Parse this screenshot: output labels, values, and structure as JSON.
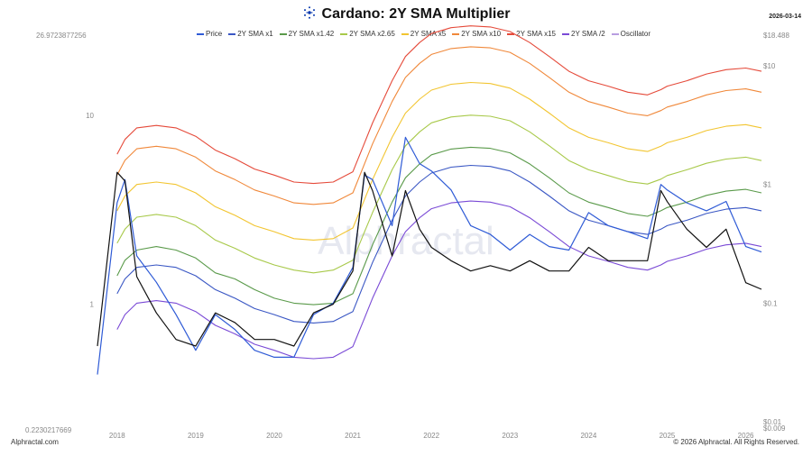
{
  "title": "Cardano: 2Y SMA Multiplier",
  "date": "2026-03-14",
  "footer": {
    "left": "Alphractal.com",
    "right": "© 2026 Alphractal. All Rights Reserved."
  },
  "watermark": "Alphractal",
  "colors": {
    "price": "#2f5bd6",
    "oscillator": "#111111",
    "sma1": "#3a57c4",
    "sma142": "#5a9a4a",
    "sma265": "#a8c94a",
    "sma5": "#f2c531",
    "sma10": "#f0883a",
    "sma15": "#e54a3a",
    "sma_half": "#7a4ad6",
    "legend_osc": "#b89ee0"
  },
  "chart_data": {
    "type": "line",
    "title": "Cardano: 2Y SMA Multiplier",
    "x": [
      2017.75,
      2018.0,
      2018.1,
      2018.25,
      2018.5,
      2018.75,
      2019.0,
      2019.25,
      2019.5,
      2019.75,
      2020.0,
      2020.25,
      2020.5,
      2020.75,
      2021.0,
      2021.15,
      2021.25,
      2021.5,
      2021.67,
      2021.85,
      2022.0,
      2022.25,
      2022.5,
      2022.75,
      2023.0,
      2023.25,
      2023.5,
      2023.75,
      2024.0,
      2024.25,
      2024.5,
      2024.75,
      2024.92,
      2025.0,
      2025.25,
      2025.5,
      2025.75,
      2026.0,
      2026.2
    ],
    "series": [
      {
        "name": "Price",
        "axis": "right",
        "values": [
          0.025,
          0.7,
          1.1,
          0.25,
          0.15,
          0.08,
          0.04,
          0.08,
          0.06,
          0.04,
          0.035,
          0.035,
          0.08,
          0.1,
          0.2,
          1.2,
          1.1,
          0.45,
          2.5,
          1.5,
          1.3,
          0.9,
          0.45,
          0.38,
          0.28,
          0.38,
          0.3,
          0.28,
          0.58,
          0.45,
          0.4,
          0.35,
          1.0,
          0.9,
          0.7,
          0.6,
          0.72,
          0.3,
          0.27
        ]
      },
      {
        "name": "2Y SMA x1",
        "axis": "right",
        "values": [
          null,
          0.12,
          0.16,
          0.2,
          0.21,
          0.2,
          0.17,
          0.13,
          0.11,
          0.09,
          0.08,
          0.07,
          0.068,
          0.07,
          0.085,
          0.15,
          0.22,
          0.5,
          0.8,
          1.05,
          1.25,
          1.4,
          1.45,
          1.42,
          1.3,
          1.05,
          0.8,
          0.6,
          0.5,
          0.45,
          0.4,
          0.38,
          0.42,
          0.45,
          0.5,
          0.57,
          0.62,
          0.64,
          0.6
        ]
      },
      {
        "name": "2Y SMA x1.42",
        "axis": "right",
        "values": [
          null,
          0.17,
          0.23,
          0.28,
          0.3,
          0.28,
          0.24,
          0.18,
          0.16,
          0.13,
          0.11,
          0.1,
          0.097,
          0.1,
          0.12,
          0.21,
          0.31,
          0.71,
          1.14,
          1.49,
          1.78,
          1.99,
          2.06,
          2.02,
          1.85,
          1.49,
          1.14,
          0.85,
          0.71,
          0.64,
          0.57,
          0.54,
          0.6,
          0.64,
          0.71,
          0.81,
          0.88,
          0.91,
          0.85
        ]
      },
      {
        "name": "2Y SMA x2.65",
        "axis": "right",
        "values": [
          null,
          0.32,
          0.42,
          0.53,
          0.56,
          0.53,
          0.45,
          0.34,
          0.29,
          0.24,
          0.21,
          0.19,
          0.18,
          0.19,
          0.23,
          0.4,
          0.58,
          1.33,
          2.12,
          2.78,
          3.31,
          3.71,
          3.84,
          3.76,
          3.45,
          2.78,
          2.12,
          1.59,
          1.33,
          1.19,
          1.06,
          1.01,
          1.11,
          1.19,
          1.33,
          1.51,
          1.64,
          1.7,
          1.59
        ]
      },
      {
        "name": "2Y SMA x5",
        "axis": "right",
        "values": [
          null,
          0.6,
          0.8,
          1.0,
          1.05,
          1.0,
          0.85,
          0.65,
          0.55,
          0.45,
          0.4,
          0.35,
          0.34,
          0.35,
          0.43,
          0.75,
          1.1,
          2.5,
          4.0,
          5.25,
          6.25,
          7.0,
          7.25,
          7.1,
          6.5,
          5.25,
          4.0,
          3.0,
          2.5,
          2.25,
          2.0,
          1.9,
          2.1,
          2.25,
          2.5,
          2.85,
          3.1,
          3.2,
          3.0
        ]
      },
      {
        "name": "2Y SMA x10",
        "axis": "right",
        "values": [
          null,
          1.2,
          1.6,
          2.0,
          2.1,
          2.0,
          1.7,
          1.3,
          1.1,
          0.9,
          0.8,
          0.7,
          0.68,
          0.7,
          0.85,
          1.5,
          2.2,
          5.0,
          8.0,
          10.5,
          12.5,
          14.0,
          14.5,
          14.2,
          13.0,
          10.5,
          8.0,
          6.0,
          5.0,
          4.5,
          4.0,
          3.8,
          4.2,
          4.5,
          5.0,
          5.7,
          6.2,
          6.4,
          6.0
        ]
      },
      {
        "name": "2Y SMA x15",
        "axis": "right",
        "values": [
          null,
          1.8,
          2.4,
          3.0,
          3.15,
          3.0,
          2.55,
          1.95,
          1.65,
          1.35,
          1.2,
          1.05,
          1.02,
          1.05,
          1.28,
          2.25,
          3.3,
          7.5,
          12.0,
          15.75,
          18.75,
          21.0,
          21.75,
          21.3,
          19.5,
          15.75,
          12.0,
          9.0,
          7.5,
          6.75,
          6.0,
          5.7,
          6.3,
          6.75,
          7.5,
          8.55,
          9.3,
          9.6,
          9.0
        ]
      },
      {
        "name": "2Y SMA /2",
        "axis": "right",
        "values": [
          null,
          0.06,
          0.08,
          0.1,
          0.105,
          0.1,
          0.085,
          0.065,
          0.055,
          0.045,
          0.04,
          0.035,
          0.034,
          0.035,
          0.043,
          0.075,
          0.11,
          0.25,
          0.4,
          0.525,
          0.625,
          0.7,
          0.725,
          0.71,
          0.65,
          0.525,
          0.4,
          0.3,
          0.25,
          0.225,
          0.2,
          0.19,
          0.21,
          0.225,
          0.25,
          0.285,
          0.31,
          0.32,
          0.3
        ]
      },
      {
        "name": "Oscillator",
        "axis": "left",
        "values": [
          0.6,
          5.0,
          4.5,
          1.4,
          0.9,
          0.65,
          0.6,
          0.9,
          0.8,
          0.65,
          0.65,
          0.6,
          0.9,
          1.0,
          1.5,
          5.0,
          4.0,
          1.8,
          4.0,
          2.5,
          2.0,
          1.7,
          1.5,
          1.6,
          1.5,
          1.7,
          1.5,
          1.5,
          2.0,
          1.7,
          1.7,
          1.7,
          4.0,
          3.5,
          2.5,
          2.0,
          2.5,
          1.3,
          1.2
        ]
      }
    ],
    "legend": [
      "Price",
      "2Y SMA x1",
      "2Y SMA x1.42",
      "2Y SMA x2.65",
      "2Y SMA x5",
      "2Y SMA x10",
      "2Y SMA x15",
      "2Y SMA /2",
      "Oscillator"
    ],
    "left_axis": {
      "scale": "log",
      "range": [
        0.2230217669,
        26.9723877256
      ],
      "top_label": "26.9723877256",
      "bottom_label": "0.2230217669",
      "tick_labels": [
        "10",
        "1"
      ],
      "tick_values": [
        10,
        1
      ]
    },
    "right_axis": {
      "scale": "log",
      "range": [
        0.009,
        18.488
      ],
      "top_label": "$18.488",
      "bottom_label": "$0.009",
      "tick_labels": [
        "$10",
        "$1",
        "$0.1",
        "$0.01"
      ],
      "tick_values": [
        10,
        1,
        0.1,
        0.01
      ]
    },
    "x_axis": {
      "range": [
        2017.75,
        2026.2
      ],
      "tick_labels": [
        "2018",
        "2019",
        "2020",
        "2021",
        "2022",
        "2023",
        "2024",
        "2025",
        "2026"
      ],
      "tick_values": [
        2018,
        2019,
        2020,
        2021,
        2022,
        2023,
        2024,
        2025,
        2026
      ]
    },
    "grid": false,
    "legend_position": "top-center"
  }
}
